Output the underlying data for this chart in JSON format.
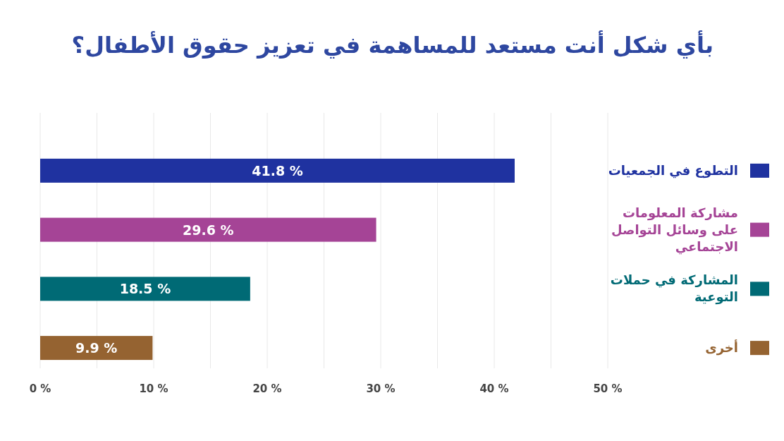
{
  "chart_data": {
    "type": "bar",
    "orientation": "horizontal",
    "title": "بأي شكل أنت مستعد للمساهمة في تعزيز حقوق الأطفال؟",
    "categories": [
      "التطوع في الجمعيات",
      "مشاركة المعلومات على وسائل التواصل الاجتماعي",
      "المشاركة في حملات التوعية",
      "أخرى"
    ],
    "values": [
      41.8,
      29.6,
      18.5,
      9.9
    ],
    "value_labels": [
      "41.8 %",
      "29.6 %",
      "18.5 %",
      "9.9 %"
    ],
    "colors": [
      "#1f32a0",
      "#a54496",
      "#006a75",
      "#956331"
    ],
    "xlim": [
      0,
      50
    ],
    "xticks": [
      {
        "value": 0,
        "label": "0 %"
      },
      {
        "value": 5,
        "label": null
      },
      {
        "value": 10,
        "label": "10 %"
      },
      {
        "value": 15,
        "label": null
      },
      {
        "value": 20,
        "label": "20 %"
      },
      {
        "value": 25,
        "label": null
      },
      {
        "value": 30,
        "label": "30 %"
      },
      {
        "value": 35,
        "label": null
      },
      {
        "value": 40,
        "label": "40 %"
      },
      {
        "value": 45,
        "label": null
      },
      {
        "value": 50,
        "label": "50 %"
      }
    ],
    "grid": "x"
  }
}
